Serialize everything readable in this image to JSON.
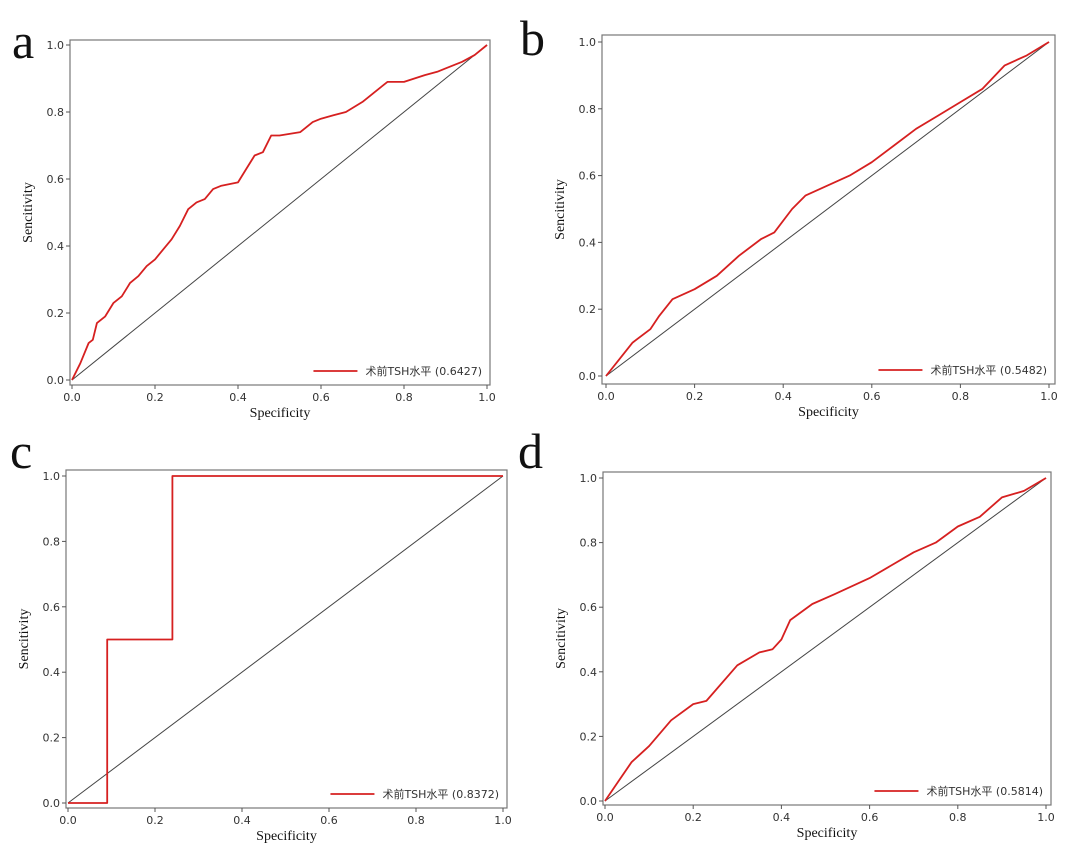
{
  "chart_data": [
    {
      "type": "line",
      "panel_label": "a",
      "xlabel": "Specificity",
      "ylabel": "Sencitivity",
      "xlim": [
        0,
        1
      ],
      "ylim": [
        0,
        1
      ],
      "xticks": [
        "0.0",
        "0.2",
        "0.4",
        "0.6",
        "0.8",
        "1.0"
      ],
      "yticks": [
        "0.0",
        "0.2",
        "0.4",
        "0.6",
        "0.8",
        "1.0"
      ],
      "legend_position": "bottom-right",
      "reference_line": "diagonal",
      "series": [
        {
          "name": "术前TSH水平 (0.6427)",
          "color": "#d62020",
          "x": [
            0,
            0.02,
            0.04,
            0.05,
            0.06,
            0.08,
            0.1,
            0.12,
            0.14,
            0.16,
            0.18,
            0.2,
            0.22,
            0.24,
            0.26,
            0.28,
            0.3,
            0.32,
            0.34,
            0.36,
            0.4,
            0.42,
            0.44,
            0.46,
            0.48,
            0.5,
            0.55,
            0.58,
            0.6,
            0.63,
            0.66,
            0.7,
            0.73,
            0.76,
            0.8,
            0.85,
            0.88,
            0.9,
            0.94,
            0.97,
            1
          ],
          "y": [
            0,
            0.05,
            0.11,
            0.12,
            0.17,
            0.19,
            0.23,
            0.25,
            0.29,
            0.31,
            0.34,
            0.36,
            0.39,
            0.42,
            0.46,
            0.51,
            0.53,
            0.54,
            0.57,
            0.58,
            0.59,
            0.63,
            0.67,
            0.68,
            0.73,
            0.73,
            0.74,
            0.77,
            0.78,
            0.79,
            0.8,
            0.83,
            0.86,
            0.89,
            0.89,
            0.91,
            0.92,
            0.93,
            0.95,
            0.97,
            1
          ]
        }
      ]
    },
    {
      "type": "line",
      "panel_label": "b",
      "xlabel": "Specificity",
      "ylabel": "Sencitivity",
      "xlim": [
        0,
        1
      ],
      "ylim": [
        0,
        1
      ],
      "xticks": [
        "0.0",
        "0.2",
        "0.4",
        "0.6",
        "0.8",
        "1.0"
      ],
      "yticks": [
        "0.0",
        "0.2",
        "0.4",
        "0.6",
        "0.8",
        "1.0"
      ],
      "legend_position": "bottom-right",
      "reference_line": "diagonal",
      "series": [
        {
          "name": "术前TSH水平 (0.5482)",
          "color": "#d62020",
          "x": [
            0,
            0.03,
            0.06,
            0.1,
            0.12,
            0.15,
            0.2,
            0.25,
            0.3,
            0.35,
            0.38,
            0.42,
            0.45,
            0.5,
            0.55,
            0.6,
            0.65,
            0.7,
            0.75,
            0.8,
            0.85,
            0.9,
            0.95,
            1
          ],
          "y": [
            0,
            0.05,
            0.1,
            0.14,
            0.18,
            0.23,
            0.26,
            0.3,
            0.36,
            0.41,
            0.43,
            0.5,
            0.54,
            0.57,
            0.6,
            0.64,
            0.69,
            0.74,
            0.78,
            0.82,
            0.86,
            0.93,
            0.96,
            1
          ]
        }
      ]
    },
    {
      "type": "line",
      "panel_label": "c",
      "xlabel": "Specificity",
      "ylabel": "Sencitivity",
      "xlim": [
        0,
        1
      ],
      "ylim": [
        0,
        1
      ],
      "xticks": [
        "0.0",
        "0.2",
        "0.4",
        "0.6",
        "0.8",
        "1.0"
      ],
      "yticks": [
        "0.0",
        "0.2",
        "0.4",
        "0.6",
        "0.8",
        "1.0"
      ],
      "legend_position": "bottom-right",
      "reference_line": "diagonal",
      "series": [
        {
          "name": "术前TSH水平 (0.8372)",
          "color": "#d62020",
          "x": [
            0,
            0.09,
            0.09,
            0.24,
            0.24,
            1
          ],
          "y": [
            0,
            0,
            0.5,
            0.5,
            1,
            1
          ]
        }
      ]
    },
    {
      "type": "line",
      "panel_label": "d",
      "xlabel": "Specificity",
      "ylabel": "Sencitivity",
      "xlim": [
        0,
        1
      ],
      "ylim": [
        0,
        1
      ],
      "xticks": [
        "0.0",
        "0.2",
        "0.4",
        "0.6",
        "0.8",
        "1.0"
      ],
      "yticks": [
        "0.0",
        "0.2",
        "0.4",
        "0.6",
        "0.8",
        "1.0"
      ],
      "legend_position": "bottom-right",
      "reference_line": "diagonal",
      "series": [
        {
          "name": "术前TSH水平 (0.5814)",
          "color": "#d62020",
          "x": [
            0,
            0.03,
            0.06,
            0.1,
            0.15,
            0.2,
            0.23,
            0.3,
            0.35,
            0.38,
            0.4,
            0.42,
            0.47,
            0.52,
            0.6,
            0.7,
            0.75,
            0.8,
            0.85,
            0.9,
            0.95,
            1
          ],
          "y": [
            0,
            0.06,
            0.12,
            0.17,
            0.25,
            0.3,
            0.31,
            0.42,
            0.46,
            0.47,
            0.5,
            0.56,
            0.61,
            0.64,
            0.69,
            0.77,
            0.8,
            0.85,
            0.88,
            0.94,
            0.96,
            1
          ]
        }
      ]
    }
  ]
}
